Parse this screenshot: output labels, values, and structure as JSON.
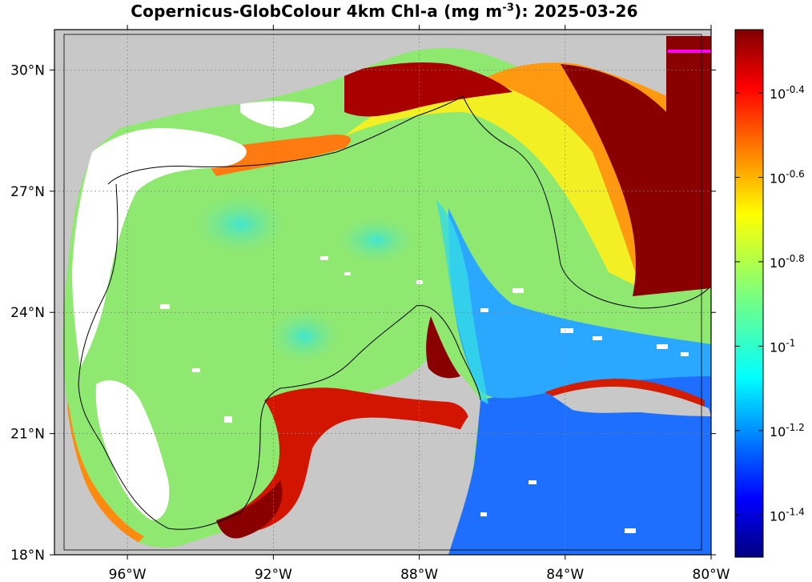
{
  "title": {
    "prefix": "Copernicus-GlobColour 4km Chl-a (mg m",
    "exponent": "-3",
    "suffix": "): 2025-03-26"
  },
  "map": {
    "lon_range": [
      -98,
      -80
    ],
    "lat_range": [
      18,
      31
    ],
    "lon_ticks": [
      {
        "value": -96,
        "label": "96°W"
      },
      {
        "value": -92,
        "label": "92°W"
      },
      {
        "value": -88,
        "label": "88°W"
      },
      {
        "value": -84,
        "label": "84°W"
      },
      {
        "value": -80,
        "label": "80°W"
      }
    ],
    "lat_ticks": [
      {
        "value": 18,
        "label": "18°N"
      },
      {
        "value": 21,
        "label": "21°N"
      },
      {
        "value": 24,
        "label": "24°N"
      },
      {
        "value": 27,
        "label": "27°N"
      },
      {
        "value": 30,
        "label": "30°N"
      }
    ],
    "land_color": "#c8c8c8",
    "nodata_color": "#ffffff",
    "grid": true
  },
  "colorbar": {
    "scale": "log10",
    "range": [
      -1.5,
      -0.25
    ],
    "colormap": "jet",
    "ticks": [
      {
        "value": -0.4,
        "base": "10",
        "exp": "-0.4"
      },
      {
        "value": -0.6,
        "base": "10",
        "exp": "-0.6"
      },
      {
        "value": -0.8,
        "base": "10",
        "exp": "-0.8"
      },
      {
        "value": -1.0,
        "base": "10",
        "exp": "-1"
      },
      {
        "value": -1.2,
        "base": "10",
        "exp": "-1.2"
      },
      {
        "value": -1.4,
        "base": "10",
        "exp": "-1.4"
      }
    ]
  }
}
